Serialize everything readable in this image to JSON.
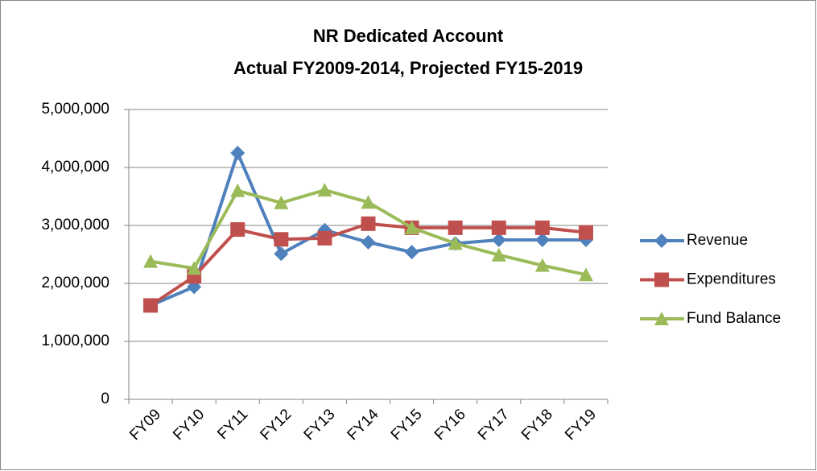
{
  "chart_data": {
    "type": "line",
    "title": "NR Dedicated Account",
    "subtitle": "Actual FY2009-2014, Projected FY15-2019",
    "categories": [
      "FY09",
      "FY10",
      "FY11",
      "FY12",
      "FY13",
      "FY14",
      "FY15",
      "FY16",
      "FY17",
      "FY18",
      "FY19"
    ],
    "series": [
      {
        "name": "Revenue",
        "color": "#4f81bd",
        "marker": "diamond",
        "values": [
          1620000,
          1940000,
          4250000,
          2510000,
          2920000,
          2710000,
          2540000,
          2690000,
          2750000,
          2750000,
          2750000
        ]
      },
      {
        "name": "Expenditures",
        "color": "#c0504d",
        "marker": "square",
        "values": [
          1620000,
          2120000,
          2930000,
          2760000,
          2780000,
          3030000,
          2960000,
          2960000,
          2960000,
          2960000,
          2880000
        ]
      },
      {
        "name": "Fund Balance",
        "color": "#9bbb59",
        "marker": "triangle",
        "values": [
          2380000,
          2260000,
          3600000,
          3390000,
          3610000,
          3400000,
          2960000,
          2690000,
          2490000,
          2310000,
          2150000
        ]
      }
    ],
    "ylim": [
      0,
      5000000
    ],
    "yticks": [
      0,
      {
        "value": 1000000,
        "label": "1,000,000"
      },
      {
        "value": 2000000,
        "label": "2,000,000"
      },
      {
        "value": 3000000,
        "label": "3,000,000"
      },
      {
        "value": 4000000,
        "label": "4,000,000"
      },
      {
        "value": 5000000,
        "label": "5,000,000"
      }
    ],
    "grid": true,
    "legend": "right"
  }
}
